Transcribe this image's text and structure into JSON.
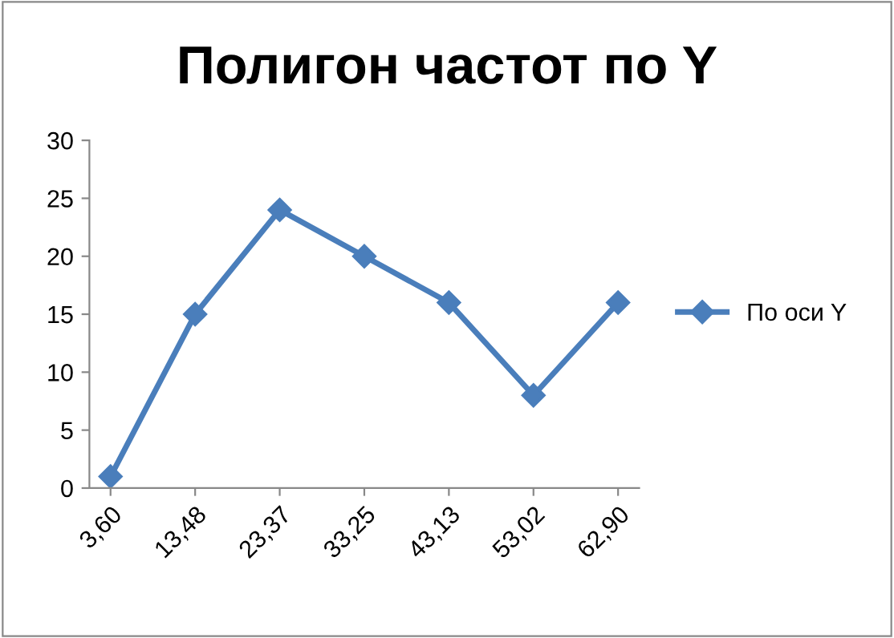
{
  "chart_data": {
    "type": "line",
    "title": "Полигон частот по Y",
    "categories": [
      "3,60",
      "13,48",
      "23,37",
      "33,25",
      "43,13",
      "53,02",
      "62,90"
    ],
    "series": [
      {
        "name": "По оси Y",
        "color": "#4a7ebb",
        "values": [
          1,
          15,
          24,
          20,
          16,
          8,
          16
        ]
      }
    ],
    "ylim": [
      0,
      30
    ],
    "yticks": [
      0,
      5,
      10,
      15,
      20,
      25,
      30
    ],
    "grid": false,
    "legend": "right",
    "marker": "diamond",
    "line_style": "solid"
  }
}
